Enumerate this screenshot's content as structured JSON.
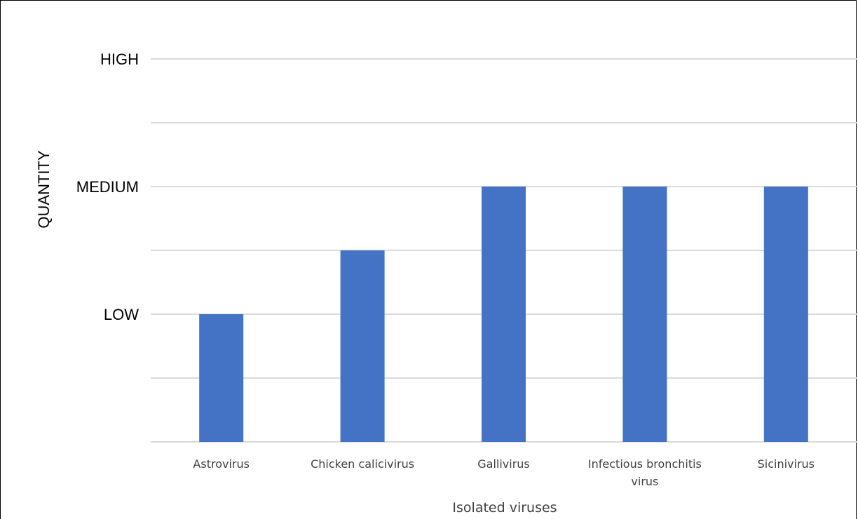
{
  "chart_data": {
    "type": "bar",
    "categories": [
      [
        "Astrovirus"
      ],
      [
        "Chicken calicivirus"
      ],
      [
        "Gallivirus"
      ],
      [
        "Infectious bronchitis",
        "virus"
      ],
      [
        "Sicinivirus"
      ]
    ],
    "values": [
      2,
      3,
      4,
      4,
      4
    ],
    "ylim": [
      0,
      6
    ],
    "y_ticks": [
      {
        "value": 2,
        "label": "LOW"
      },
      {
        "value": 4,
        "label": "MEDIUM"
      },
      {
        "value": 6,
        "label": "HIGH"
      }
    ],
    "gridlines": [
      1,
      2,
      3,
      4,
      5,
      6
    ],
    "xlabel": "Isolated viruses",
    "ylabel": "QUANTITY",
    "grid": true,
    "bar_color": "#4472C4",
    "grid_color": "#D9D9D9"
  }
}
